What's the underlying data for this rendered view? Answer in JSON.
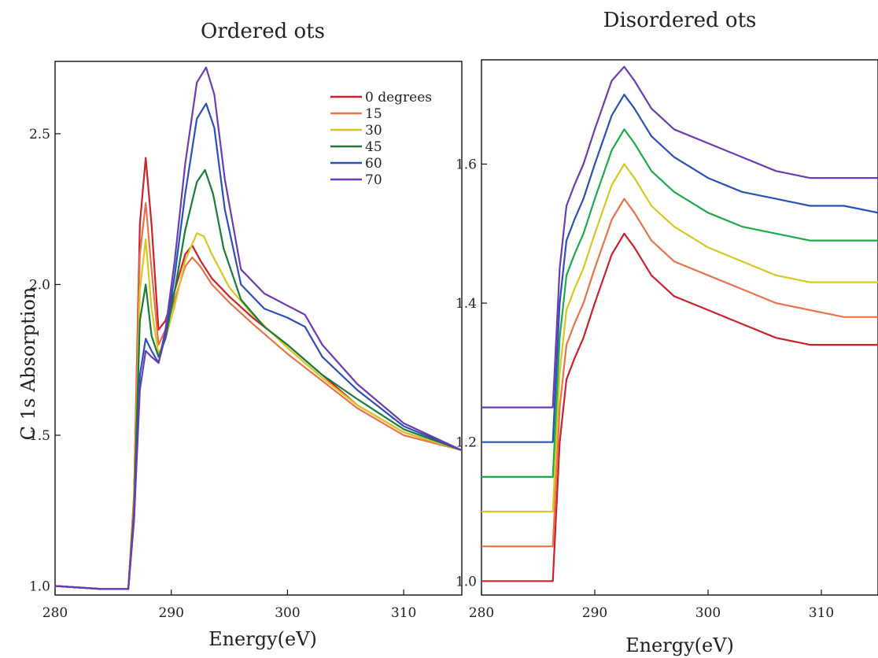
{
  "chart_data": [
    {
      "type": "line",
      "title": "Ordered ots",
      "xlabel": "Energy(eV)",
      "ylabel": "C 1s Absorption",
      "xlim": [
        280,
        315
      ],
      "ylim": [
        0.97,
        2.74
      ],
      "xticks": [
        280,
        290,
        300,
        310
      ],
      "yticks": [
        1.0,
        1.5,
        2.0,
        2.5
      ],
      "grid": false,
      "legend": "top-right",
      "series": [
        {
          "name": "0 degrees",
          "color": "#c8232c",
          "x": [
            280,
            284,
            286.3,
            286.8,
            287.3,
            287.8,
            288.3,
            288.9,
            289.5,
            290.3,
            291.2,
            291.8,
            292.5,
            293.5,
            295,
            297,
            300,
            303,
            306,
            310,
            315
          ],
          "y": [
            1.0,
            0.99,
            0.99,
            1.3,
            2.2,
            2.42,
            2.2,
            1.85,
            1.88,
            1.98,
            2.1,
            2.13,
            2.08,
            2.02,
            1.96,
            1.89,
            1.8,
            1.7,
            1.6,
            1.51,
            1.45
          ]
        },
        {
          "name": "15",
          "color": "#e8734a",
          "x": [
            280,
            284,
            286.3,
            286.8,
            287.3,
            287.8,
            288.3,
            288.9,
            289.5,
            290.3,
            291.2,
            291.8,
            292.5,
            293.5,
            295,
            297,
            300,
            303,
            306,
            310,
            315
          ],
          "y": [
            1.0,
            0.99,
            0.99,
            1.3,
            2.1,
            2.27,
            2.05,
            1.8,
            1.85,
            1.95,
            2.06,
            2.09,
            2.06,
            2.0,
            1.94,
            1.87,
            1.77,
            1.68,
            1.59,
            1.5,
            1.45
          ]
        },
        {
          "name": "30",
          "color": "#d6c824",
          "x": [
            280,
            284,
            286.3,
            286.8,
            287.3,
            287.8,
            288.3,
            288.9,
            289.5,
            290.3,
            291.2,
            292.2,
            292.8,
            293.5,
            295,
            297,
            300,
            303,
            306,
            310,
            315
          ],
          "y": [
            1.0,
            0.99,
            0.99,
            1.25,
            1.98,
            2.15,
            1.92,
            1.77,
            1.82,
            1.93,
            2.08,
            2.17,
            2.16,
            2.1,
            1.99,
            1.9,
            1.79,
            1.69,
            1.6,
            1.51,
            1.45
          ]
        },
        {
          "name": "45",
          "color": "#1c7a3c",
          "x": [
            280,
            284,
            286.3,
            286.8,
            287.3,
            287.8,
            288.3,
            288.9,
            289.5,
            290.3,
            291.2,
            292.2,
            292.9,
            293.6,
            294.5,
            296,
            298,
            300,
            303,
            306,
            310,
            315
          ],
          "y": [
            1.0,
            0.99,
            0.99,
            1.25,
            1.88,
            2.0,
            1.83,
            1.76,
            1.82,
            1.98,
            2.18,
            2.34,
            2.38,
            2.3,
            2.12,
            1.95,
            1.86,
            1.8,
            1.7,
            1.62,
            1.52,
            1.45
          ]
        },
        {
          "name": "60",
          "color": "#2b50b8",
          "x": [
            280,
            284,
            286.3,
            286.8,
            287.3,
            287.8,
            288.3,
            288.9,
            289.5,
            290.3,
            291.2,
            292.2,
            293.0,
            293.7,
            294.6,
            296,
            298,
            300,
            301.5,
            303,
            306,
            310,
            315
          ],
          "y": [
            1.0,
            0.99,
            0.99,
            1.22,
            1.7,
            1.82,
            1.78,
            1.74,
            1.83,
            2.03,
            2.3,
            2.55,
            2.6,
            2.52,
            2.25,
            2.0,
            1.92,
            1.89,
            1.86,
            1.76,
            1.65,
            1.53,
            1.45
          ]
        },
        {
          "name": "70",
          "color": "#6a3cb4",
          "x": [
            280,
            284,
            286.3,
            286.8,
            287.3,
            287.8,
            288.3,
            288.9,
            289.5,
            290.3,
            291.2,
            292.2,
            293.0,
            293.7,
            294.6,
            296,
            298,
            300,
            301.5,
            303,
            306,
            310,
            315
          ],
          "y": [
            1.0,
            0.99,
            0.99,
            1.22,
            1.65,
            1.78,
            1.76,
            1.74,
            1.85,
            2.08,
            2.4,
            2.67,
            2.72,
            2.63,
            2.35,
            2.05,
            1.97,
            1.93,
            1.9,
            1.8,
            1.67,
            1.54,
            1.45
          ]
        }
      ]
    },
    {
      "type": "line",
      "title": "Disordered ots",
      "xlabel": "Energy(eV)",
      "ylabel": "",
      "xlim": [
        280,
        315
      ],
      "ylim": [
        0.98,
        1.75
      ],
      "xticks": [
        280,
        290,
        300,
        310
      ],
      "yticks": [
        1.0,
        1.2,
        1.4,
        1.6
      ],
      "grid": false,
      "legend": "none",
      "series": [
        {
          "color": "#c8232c",
          "x": [
            280,
            284,
            286.3,
            286.9,
            287.5,
            288.2,
            289,
            290,
            291.5,
            292.6,
            293.5,
            295,
            297,
            300,
            303,
            306,
            309,
            312,
            315
          ],
          "y": [
            1.0,
            1.0,
            1.0,
            1.2,
            1.29,
            1.32,
            1.35,
            1.4,
            1.47,
            1.5,
            1.48,
            1.44,
            1.41,
            1.39,
            1.37,
            1.35,
            1.34,
            1.34,
            1.34
          ]
        },
        {
          "color": "#e8734a",
          "x": [
            280,
            284,
            286.3,
            286.9,
            287.5,
            288.2,
            289,
            290,
            291.5,
            292.6,
            293.5,
            295,
            297,
            300,
            303,
            306,
            309,
            312,
            315
          ],
          "y": [
            1.05,
            1.05,
            1.05,
            1.25,
            1.34,
            1.37,
            1.4,
            1.45,
            1.52,
            1.55,
            1.53,
            1.49,
            1.46,
            1.44,
            1.42,
            1.4,
            1.39,
            1.38,
            1.38
          ]
        },
        {
          "color": "#d6c824",
          "x": [
            280,
            284,
            286.3,
            286.9,
            287.5,
            288.2,
            289,
            290,
            291.5,
            292.6,
            293.5,
            295,
            297,
            300,
            303,
            306,
            309,
            312,
            315
          ],
          "y": [
            1.1,
            1.1,
            1.1,
            1.3,
            1.39,
            1.42,
            1.45,
            1.5,
            1.57,
            1.6,
            1.58,
            1.54,
            1.51,
            1.48,
            1.46,
            1.44,
            1.43,
            1.43,
            1.43
          ]
        },
        {
          "color": "#1faa48",
          "x": [
            280,
            284,
            286.3,
            286.9,
            287.5,
            288.2,
            289,
            290,
            291.5,
            292.6,
            293.5,
            295,
            297,
            300,
            303,
            306,
            309,
            312,
            315
          ],
          "y": [
            1.15,
            1.15,
            1.15,
            1.35,
            1.44,
            1.47,
            1.5,
            1.55,
            1.62,
            1.65,
            1.63,
            1.59,
            1.56,
            1.53,
            1.51,
            1.5,
            1.49,
            1.49,
            1.49
          ]
        },
        {
          "color": "#2b50b8",
          "x": [
            280,
            284,
            286.3,
            286.9,
            287.5,
            288.2,
            289,
            290,
            291.5,
            292.6,
            293.5,
            295,
            297,
            300,
            303,
            306,
            309,
            312,
            315
          ],
          "y": [
            1.2,
            1.2,
            1.2,
            1.4,
            1.49,
            1.52,
            1.55,
            1.6,
            1.67,
            1.7,
            1.68,
            1.64,
            1.61,
            1.58,
            1.56,
            1.55,
            1.54,
            1.54,
            1.53
          ]
        },
        {
          "color": "#6a3cb4",
          "x": [
            280,
            284,
            286.3,
            286.9,
            287.5,
            288.2,
            289,
            290,
            291.5,
            292.6,
            293.5,
            295,
            297,
            300,
            303,
            306,
            309,
            312,
            315
          ],
          "y": [
            1.25,
            1.25,
            1.25,
            1.45,
            1.54,
            1.57,
            1.6,
            1.65,
            1.72,
            1.74,
            1.72,
            1.68,
            1.65,
            1.63,
            1.61,
            1.59,
            1.58,
            1.58,
            1.58
          ]
        }
      ]
    }
  ]
}
